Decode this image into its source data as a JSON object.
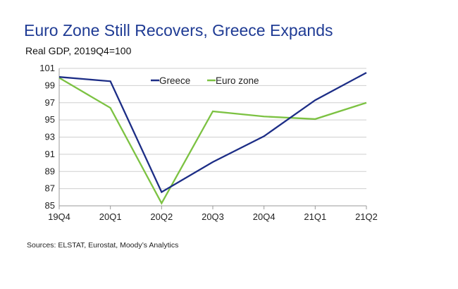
{
  "chart_data": {
    "type": "line",
    "title": "Euro Zone Still Recovers, Greece Expands",
    "subtitle": "Real GDP, 2019Q4=100",
    "source": "Sources: ELSTAT, Eurostat, Moody’s Analytics",
    "categories": [
      "19Q4",
      "20Q1",
      "20Q2",
      "20Q3",
      "20Q4",
      "21Q1",
      "21Q2"
    ],
    "yticks": [
      "85",
      "87",
      "89",
      "91",
      "93",
      "95",
      "97",
      "99",
      "101"
    ],
    "ylim": [
      85,
      101
    ],
    "grid": true,
    "legend_position": "top-center",
    "series": [
      {
        "name": "Greece",
        "color": "#1c2d86",
        "values": [
          100.0,
          99.5,
          86.6,
          90.1,
          93.1,
          97.3,
          100.5
        ]
      },
      {
        "name": "Euro zone",
        "color": "#7cc242",
        "values": [
          99.9,
          96.4,
          85.3,
          96.0,
          95.4,
          95.1,
          97.0
        ]
      }
    ]
  }
}
